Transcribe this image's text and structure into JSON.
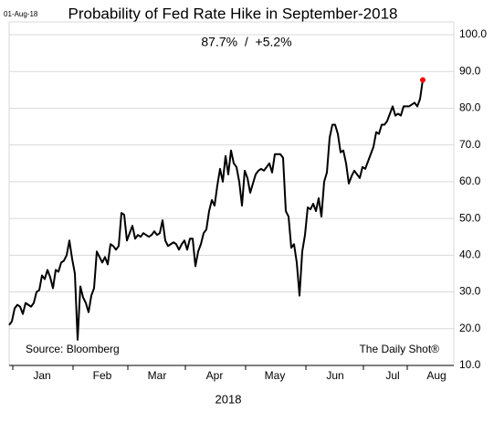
{
  "chart_data": {
    "type": "line",
    "date_stamp": "01-Aug-18",
    "title": "Probability of Fed Rate Hike in September-2018",
    "subtitle": "87.7%  /  +5.2%",
    "source": "Source: Bloomberg",
    "credit": "The Daily Shot®",
    "x_label": "2018",
    "color": "#000000",
    "last_point_color": "#ff0000",
    "grid": true,
    "y_axis_side": "right",
    "ylim": [
      10,
      100
    ],
    "yticks": [
      {
        "value": 10,
        "label": "10.0"
      },
      {
        "value": 20,
        "label": "20.0"
      },
      {
        "value": 30,
        "label": "30.0"
      },
      {
        "value": 40,
        "label": "40.0"
      },
      {
        "value": 50,
        "label": "50.0"
      },
      {
        "value": 60,
        "label": "60.0"
      },
      {
        "value": 70,
        "label": "70.0"
      },
      {
        "value": 80,
        "label": "80.0"
      },
      {
        "value": 90,
        "label": "90.0"
      },
      {
        "value": 100,
        "label": "100.0"
      }
    ],
    "xlim": [
      0,
      156
    ],
    "xticks": [
      {
        "value": 12,
        "label": "Jan"
      },
      {
        "value": 34,
        "label": "Feb"
      },
      {
        "value": 54,
        "label": "Mar"
      },
      {
        "value": 75,
        "label": "Apr"
      },
      {
        "value": 97,
        "label": "May"
      },
      {
        "value": 119,
        "label": "Jun"
      },
      {
        "value": 140,
        "label": "Jul"
      },
      {
        "value": 156,
        "label": "Aug"
      }
    ],
    "values": [
      21,
      22,
      25.5,
      26.5,
      26,
      24,
      27,
      26.5,
      26,
      27,
      30,
      30.5,
      34.5,
      33.5,
      36,
      34,
      31,
      36,
      35.5,
      38,
      38.5,
      40,
      44,
      39,
      35,
      17,
      31.5,
      28.5,
      27,
      24.5,
      29,
      31,
      41,
      39.5,
      38,
      39.5,
      37.5,
      43,
      42.5,
      41.5,
      42.5,
      51.5,
      51,
      44,
      46,
      48,
      44.5,
      45.5,
      45,
      46,
      45.5,
      45,
      45.5,
      46.5,
      45.5,
      46,
      49.5,
      44,
      42.5,
      43,
      43.5,
      43,
      41.5,
      43,
      44,
      41.5,
      44.5,
      44.5,
      37,
      41,
      43,
      46,
      47,
      52,
      55,
      53.5,
      59,
      63.5,
      60,
      67,
      62,
      68.5,
      65,
      64,
      60,
      53.5,
      63,
      61,
      57,
      59.5,
      62,
      63,
      63.5,
      63,
      64,
      65,
      62.5,
      67.5,
      67.5,
      67.5,
      66.5,
      52,
      50.5,
      42,
      43,
      38,
      29,
      41,
      45.5,
      53,
      52.5,
      54,
      52,
      55.5,
      50.5,
      60,
      62.5,
      72,
      75.5,
      75.5,
      73,
      68,
      68.5,
      65,
      59.5,
      61.5,
      63,
      62,
      61,
      64,
      63.5,
      65.5,
      67.5,
      69.5,
      73.5,
      73,
      75.5,
      75.5,
      76.5,
      78.5,
      80.5,
      78,
      78.5,
      78,
      80.5,
      80.5,
      80.5,
      81,
      81.5,
      80.5,
      82.5,
      87.7
    ]
  }
}
